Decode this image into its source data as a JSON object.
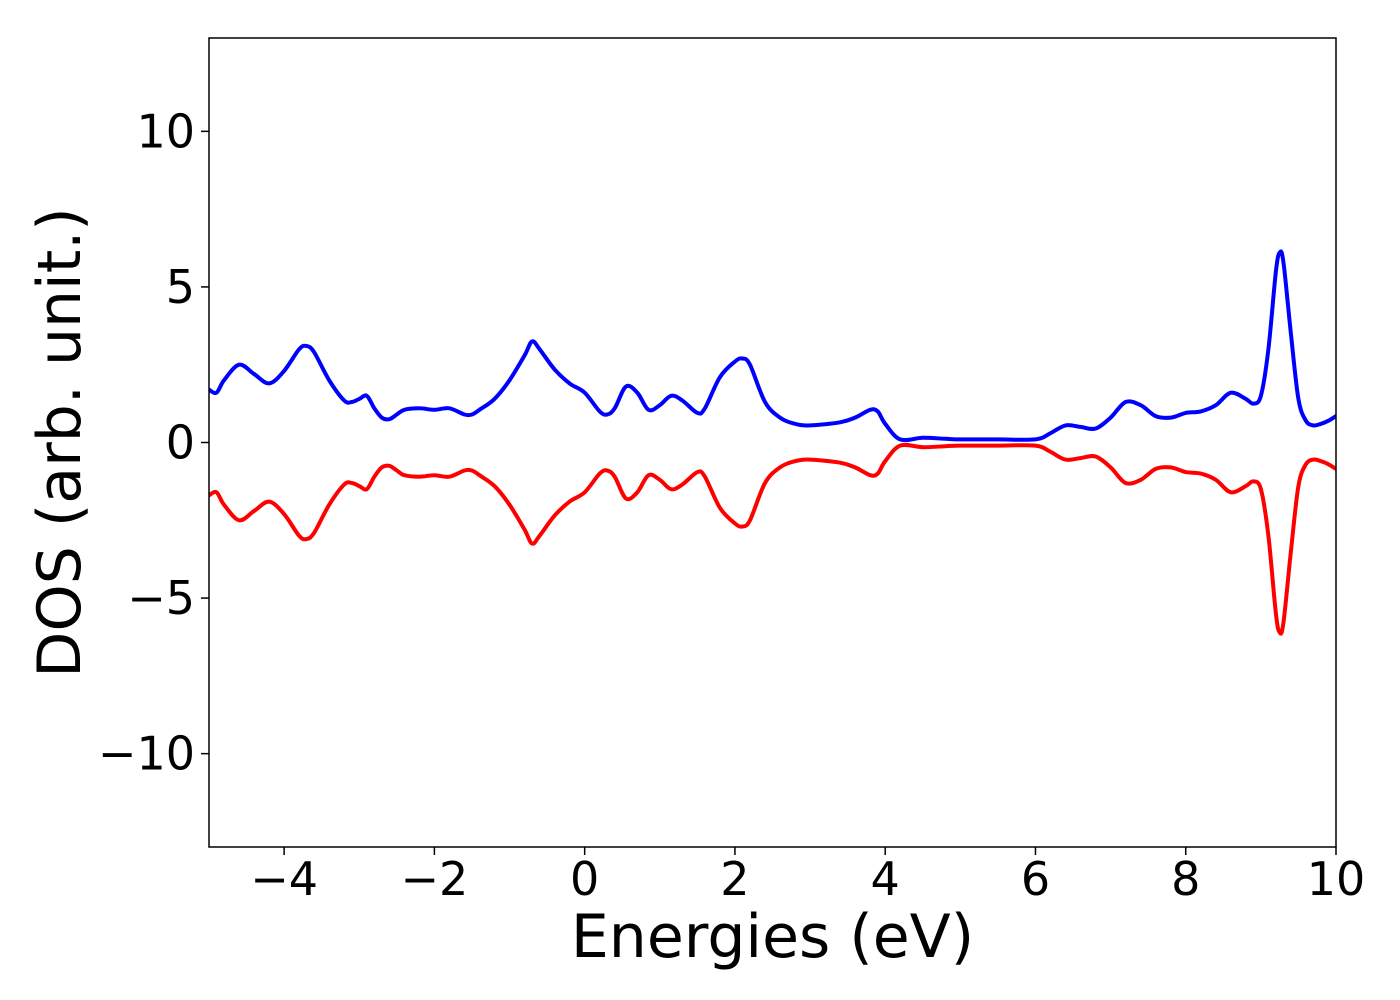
{
  "chart_data": {
    "type": "line",
    "title": "",
    "xlabel": "Energies (eV)",
    "ylabel": "DOS (arb. unit.)",
    "xlim": [
      -5,
      10
    ],
    "ylim": [
      -13,
      13
    ],
    "xticks": [
      -4,
      -2,
      0,
      2,
      4,
      6,
      8,
      10
    ],
    "xtick_labels": [
      "−4",
      "−2",
      "0",
      "2",
      "4",
      "6",
      "8",
      "10"
    ],
    "yticks": [
      -10,
      -5,
      0,
      5,
      10
    ],
    "ytick_labels": [
      "−10",
      "−5",
      "0",
      "5",
      "10"
    ],
    "grid": false,
    "legend": false,
    "x": [
      -5.0,
      -4.9,
      -4.8,
      -4.6,
      -4.4,
      -4.2,
      -4.0,
      -3.8,
      -3.7,
      -3.6,
      -3.4,
      -3.2,
      -3.1,
      -3.0,
      -2.9,
      -2.8,
      -2.7,
      -2.6,
      -2.5,
      -2.4,
      -2.2,
      -2.0,
      -1.8,
      -1.6,
      -1.5,
      -1.4,
      -1.2,
      -1.0,
      -0.8,
      -0.7,
      -0.6,
      -0.4,
      -0.2,
      0.0,
      0.2,
      0.3,
      0.4,
      0.55,
      0.7,
      0.85,
      1.0,
      1.15,
      1.3,
      1.5,
      1.6,
      1.8,
      2.0,
      2.1,
      2.2,
      2.4,
      2.6,
      2.8,
      3.0,
      3.4,
      3.6,
      3.8,
      3.9,
      4.0,
      4.2,
      4.5,
      4.8,
      5.0,
      5.5,
      6.0,
      6.2,
      6.4,
      6.6,
      6.8,
      7.0,
      7.2,
      7.4,
      7.6,
      7.8,
      8.0,
      8.2,
      8.4,
      8.6,
      8.8,
      8.9,
      9.0,
      9.1,
      9.2,
      9.25,
      9.3,
      9.4,
      9.5,
      9.6,
      9.7,
      9.8,
      9.9,
      10.0
    ],
    "series": [
      {
        "color": "#0000ff",
        "values": [
          1.7,
          1.6,
          2.0,
          2.5,
          2.2,
          1.9,
          2.3,
          3.0,
          3.1,
          2.9,
          2.0,
          1.35,
          1.3,
          1.4,
          1.5,
          1.1,
          0.8,
          0.75,
          0.9,
          1.05,
          1.1,
          1.05,
          1.1,
          0.9,
          0.9,
          1.05,
          1.4,
          2.0,
          2.8,
          3.25,
          3.0,
          2.35,
          1.9,
          1.6,
          1.0,
          0.9,
          1.1,
          1.8,
          1.6,
          1.05,
          1.2,
          1.5,
          1.35,
          0.95,
          1.1,
          2.1,
          2.6,
          2.7,
          2.5,
          1.3,
          0.8,
          0.6,
          0.55,
          0.65,
          0.8,
          1.05,
          1.0,
          0.6,
          0.1,
          0.15,
          0.12,
          0.1,
          0.1,
          0.1,
          0.3,
          0.55,
          0.5,
          0.45,
          0.8,
          1.3,
          1.2,
          0.85,
          0.8,
          0.95,
          1.0,
          1.2,
          1.6,
          1.4,
          1.25,
          1.5,
          3.0,
          5.5,
          6.1,
          5.8,
          3.5,
          1.4,
          0.7,
          0.55,
          0.6,
          0.7,
          0.85
        ]
      },
      {
        "color": "#ff0000",
        "values": [
          -1.7,
          -1.6,
          -2.0,
          -2.5,
          -2.2,
          -1.9,
          -2.3,
          -3.0,
          -3.1,
          -2.9,
          -2.0,
          -1.35,
          -1.3,
          -1.4,
          -1.5,
          -1.1,
          -0.8,
          -0.75,
          -0.9,
          -1.05,
          -1.1,
          -1.05,
          -1.1,
          -0.9,
          -0.9,
          -1.05,
          -1.4,
          -2.0,
          -2.8,
          -3.25,
          -3.0,
          -2.35,
          -1.9,
          -1.6,
          -1.0,
          -0.9,
          -1.1,
          -1.8,
          -1.6,
          -1.05,
          -1.2,
          -1.5,
          -1.35,
          -0.95,
          -1.1,
          -2.1,
          -2.6,
          -2.7,
          -2.5,
          -1.3,
          -0.8,
          -0.6,
          -0.55,
          -0.65,
          -0.8,
          -1.05,
          -1.0,
          -0.6,
          -0.1,
          -0.15,
          -0.12,
          -0.1,
          -0.1,
          -0.1,
          -0.3,
          -0.55,
          -0.5,
          -0.45,
          -0.8,
          -1.3,
          -1.2,
          -0.85,
          -0.8,
          -0.95,
          -1.0,
          -1.2,
          -1.6,
          -1.4,
          -1.25,
          -1.5,
          -3.0,
          -5.5,
          -6.1,
          -5.8,
          -3.5,
          -1.4,
          -0.7,
          -0.55,
          -0.6,
          -0.7,
          -0.85
        ]
      }
    ]
  }
}
